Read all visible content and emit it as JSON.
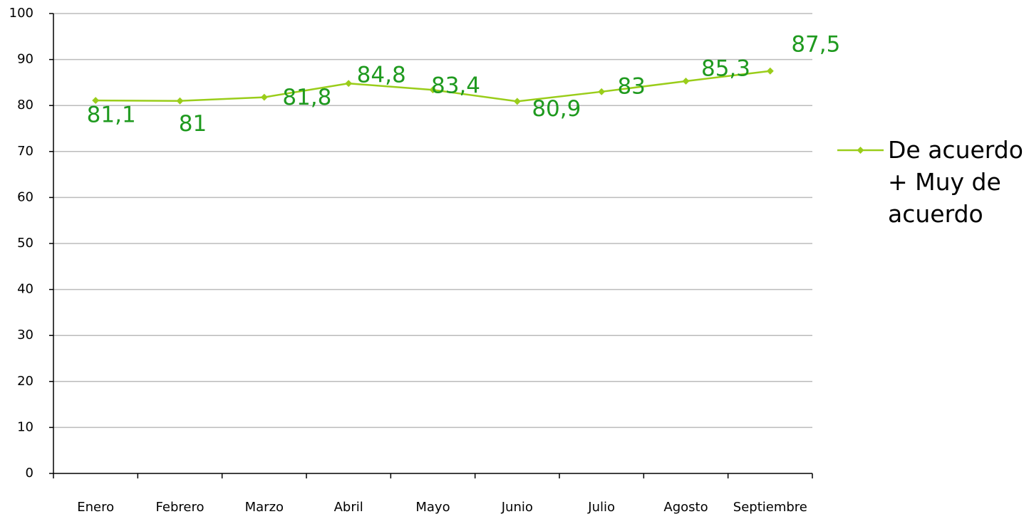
{
  "chart_data": {
    "type": "line",
    "categories": [
      "Enero",
      "Febrero",
      "Marzo",
      "Abril",
      "Mayo",
      "Junio",
      "Julio",
      "Agosto",
      "Septiembre"
    ],
    "series": [
      {
        "name": "De acuerdo + Muy de acuerdo",
        "color": "#9acd1a",
        "values": [
          81.1,
          81,
          81.8,
          84.8,
          83.4,
          80.9,
          83,
          85.3,
          87.5
        ],
        "value_labels": [
          "81,1",
          "81",
          "81,8",
          "84,8",
          "83,4",
          "80,9",
          "83",
          "85,3",
          "87,5"
        ]
      }
    ],
    "ylim": [
      0,
      100
    ],
    "yticks": [
      0,
      10,
      20,
      30,
      40,
      50,
      60,
      70,
      80,
      90,
      100
    ],
    "grid": true,
    "legend": "right",
    "label_color": "#1f9a1f"
  }
}
